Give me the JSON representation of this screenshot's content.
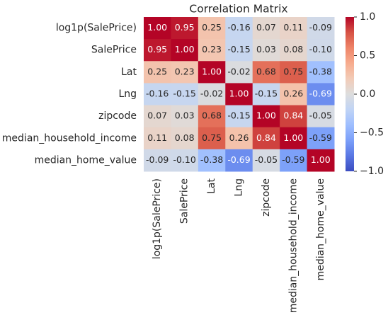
{
  "chart_data": {
    "type": "heatmap",
    "title": "Correlation Matrix",
    "x_categories": [
      "log1p(SalePrice)",
      "SalePrice",
      "Lat",
      "Lng",
      "zipcode",
      "median_household_income",
      "median_home_value"
    ],
    "y_categories": [
      "log1p(SalePrice)",
      "SalePrice",
      "Lat",
      "Lng",
      "zipcode",
      "median_household_income",
      "median_home_value"
    ],
    "values": [
      [
        1.0,
        0.95,
        0.25,
        -0.16,
        0.07,
        0.11,
        -0.09
      ],
      [
        0.95,
        1.0,
        0.23,
        -0.15,
        0.03,
        0.08,
        -0.1
      ],
      [
        0.25,
        0.23,
        1.0,
        -0.02,
        0.68,
        0.75,
        -0.38
      ],
      [
        -0.16,
        -0.15,
        -0.02,
        1.0,
        -0.15,
        0.26,
        -0.69
      ],
      [
        0.07,
        0.03,
        0.68,
        -0.15,
        1.0,
        0.84,
        -0.05
      ],
      [
        0.11,
        0.08,
        0.75,
        0.26,
        0.84,
        1.0,
        -0.59
      ],
      [
        -0.09,
        -0.1,
        -0.38,
        -0.69,
        -0.05,
        -0.59,
        1.0
      ]
    ],
    "value_labels": [
      [
        "1.00",
        "0.95",
        "0.25",
        "-0.16",
        "0.07",
        "0.11",
        "-0.09"
      ],
      [
        "0.95",
        "1.00",
        "0.23",
        "-0.15",
        "0.03",
        "0.08",
        "-0.10"
      ],
      [
        "0.25",
        "0.23",
        "1.00",
        "-0.02",
        "0.68",
        "0.75",
        "-0.38"
      ],
      [
        "-0.16",
        "-0.15",
        "-0.02",
        "1.00",
        "-0.15",
        "0.26",
        "-0.69"
      ],
      [
        "0.07",
        "0.03",
        "0.68",
        "-0.15",
        "1.00",
        "0.84",
        "-0.05"
      ],
      [
        "0.11",
        "0.08",
        "0.75",
        "0.26",
        "0.84",
        "1.00",
        "-0.59"
      ],
      [
        "-0.09",
        "-0.10",
        "-0.38",
        "-0.69",
        "-0.05",
        "-0.59",
        "1.00"
      ]
    ],
    "value_label_colors": [
      [
        "#ffffff",
        "#ffffff",
        "#262626",
        "#262626",
        "#262626",
        "#262626",
        "#262626"
      ],
      [
        "#ffffff",
        "#ffffff",
        "#262626",
        "#262626",
        "#262626",
        "#262626",
        "#262626"
      ],
      [
        "#262626",
        "#262626",
        "#ffffff",
        "#262626",
        "#262626",
        "#262626",
        "#262626"
      ],
      [
        "#262626",
        "#262626",
        "#262626",
        "#ffffff",
        "#262626",
        "#262626",
        "#ffffff"
      ],
      [
        "#262626",
        "#262626",
        "#262626",
        "#262626",
        "#ffffff",
        "#ffffff",
        "#262626"
      ],
      [
        "#262626",
        "#262626",
        "#262626",
        "#262626",
        "#ffffff",
        "#ffffff",
        "#262626"
      ],
      [
        "#262626",
        "#262626",
        "#262626",
        "#ffffff",
        "#262626",
        "#262626",
        "#ffffff"
      ]
    ],
    "colorscale": [
      "#3b4cc0",
      "#5977e3",
      "#7b9ff9",
      "#9ebeff",
      "#c0d4f5",
      "#dddddd",
      "#f2cbb7",
      "#f7ac8e",
      "#ee8468",
      "#d65244",
      "#b40426"
    ],
    "clim": [
      -1,
      1
    ],
    "cticks": [
      {
        "value": -1,
        "label": "−1.0"
      },
      {
        "value": -0.5,
        "label": "−0.5"
      },
      {
        "value": 0,
        "label": "0.0"
      },
      {
        "value": 0.5,
        "label": "0.5"
      },
      {
        "value": 1,
        "label": "1.0"
      }
    ]
  }
}
